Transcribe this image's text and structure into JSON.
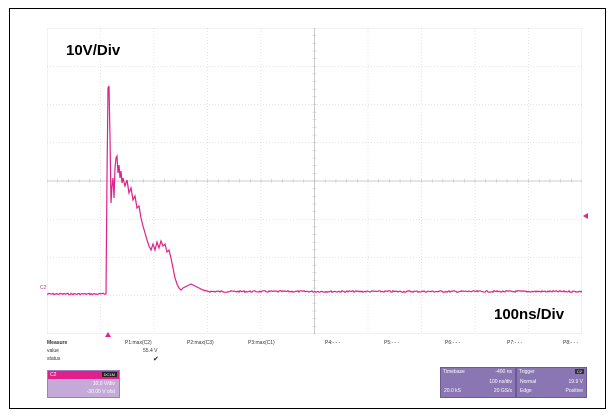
{
  "annotations": {
    "volt_div": "10V/Div",
    "time_div": "100ns/Div"
  },
  "channel_marker": "C2",
  "measure": {
    "headers": [
      "Measure",
      "P1:max(C2)",
      "P2:max(C3)",
      "P3:max(C1)",
      "P4:- - -",
      "P5:- - -",
      "P6:- - -",
      "P7:- - -",
      "P8:- - -"
    ],
    "value_label": "value",
    "value": "55.4 V",
    "status_label": "status",
    "status_check": "✔"
  },
  "channel": {
    "name": "C2",
    "badge": "DC1M",
    "vdiv": "10.0 V/div",
    "offset": "-30.00 V ofst"
  },
  "timebase": {
    "title": "Timebase",
    "delay": "-400 ns",
    "tdiv": "100 ns/div",
    "samples": "20.0 kS",
    "rate": "20 GS/s"
  },
  "trigger": {
    "title": "Trigger",
    "badge": "C2",
    "mode": "Normal",
    "level": "19.9 V",
    "type": "Edge",
    "slope": "Positive"
  },
  "colors": {
    "trace": "#e0208c",
    "grid": "#bdbdbd"
  },
  "icons": [
    "trigger-position-marker-icon",
    "trigger-level-marker-icon",
    "status-check-icon"
  ]
}
